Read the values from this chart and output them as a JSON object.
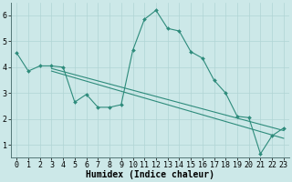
{
  "x": [
    0,
    1,
    2,
    3,
    4,
    5,
    6,
    7,
    8,
    9,
    10,
    11,
    12,
    13,
    14,
    15,
    16,
    17,
    18,
    19,
    20,
    21,
    22,
    23
  ],
  "y_main": [
    4.55,
    3.85,
    4.05,
    4.05,
    4.0,
    2.65,
    2.95,
    2.45,
    2.45,
    2.55,
    4.65,
    5.85,
    6.2,
    5.5,
    5.4,
    4.6,
    4.35,
    3.5,
    3.0,
    2.1,
    2.05,
    0.65,
    1.35,
    1.65
  ],
  "x_line": [
    3,
    4,
    5,
    6,
    7,
    8,
    9,
    10,
    11,
    12,
    13,
    14,
    15,
    16,
    17,
    18,
    19,
    20,
    21,
    22,
    23
  ],
  "y_line1": [
    3.85,
    3.72,
    3.59,
    3.46,
    3.33,
    3.2,
    3.07,
    2.94,
    2.81,
    2.68,
    2.55,
    2.42,
    2.29,
    2.16,
    2.03,
    1.9,
    1.77,
    1.64,
    1.51,
    1.38,
    1.25
  ],
  "y_line2": [
    3.95,
    3.83,
    3.71,
    3.59,
    3.47,
    3.35,
    3.23,
    3.11,
    2.99,
    2.87,
    2.75,
    2.63,
    2.51,
    2.39,
    2.27,
    2.15,
    2.03,
    1.91,
    1.79,
    1.67,
    1.55
  ],
  "line_color": "#2d8b7b",
  "bg_color": "#cce8e8",
  "grid_major_color": "#b0d4d4",
  "grid_minor_color": "#c0e0e0",
  "xlabel": "Humidex (Indice chaleur)",
  "xlim": [
    -0.5,
    23.5
  ],
  "ylim": [
    0.5,
    6.5
  ],
  "yticks": [
    1,
    2,
    3,
    4,
    5,
    6
  ],
  "xticks": [
    0,
    1,
    2,
    3,
    4,
    5,
    6,
    7,
    8,
    9,
    10,
    11,
    12,
    13,
    14,
    15,
    16,
    17,
    18,
    19,
    20,
    21,
    22,
    23
  ],
  "font_size_xlabel": 7,
  "font_size_ticks": 6,
  "marker_size": 2.0,
  "line_width": 0.8
}
